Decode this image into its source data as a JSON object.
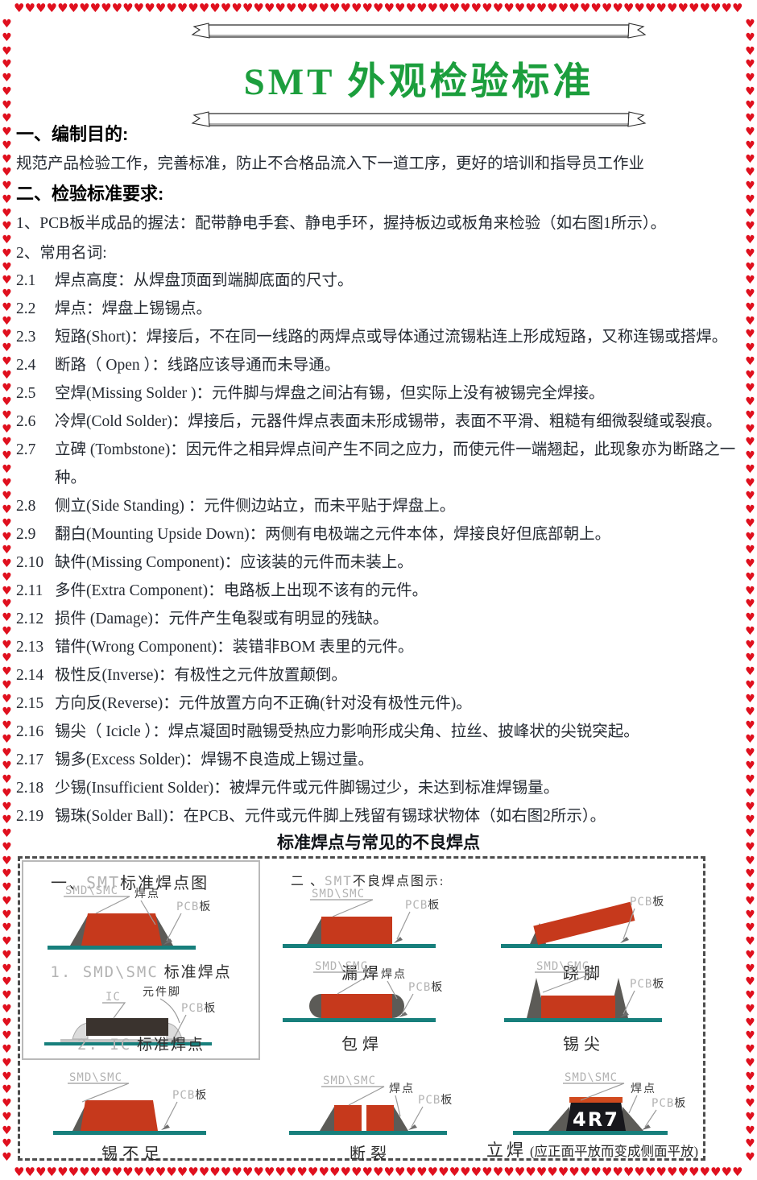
{
  "masthead": {
    "title": "SMT 外观检验标准"
  },
  "decor": {
    "heart_glyph": "♥",
    "heart_color": "#e0101e",
    "title_color": "#1c9e3d"
  },
  "intro": [
    {
      "kind": "heading",
      "text": "一、编制目的:"
    },
    {
      "kind": "body",
      "text": "规范产品检验工作，完善标准，防止不合格品流入下一道工序，更好的培训和指导员工作业"
    },
    {
      "kind": "heading",
      "text": "二、检验标准要求:"
    },
    {
      "kind": "body",
      "text": "1、PCB板半成品的握法：配带静电手套、静电手环，握持板边或板角来检验（如右图1所示）。"
    },
    {
      "kind": "body",
      "text": "2、常用名词:"
    }
  ],
  "terms": [
    {
      "num": "2.1",
      "text": "焊点高度：从焊盘顶面到端脚底面的尺寸。"
    },
    {
      "num": "2.2",
      "text": "焊点：焊盘上锡锡点。"
    },
    {
      "num": "2.3",
      "text": "短路(Short)：焊接后，不在同一线路的两焊点或导体通过流锡粘连上形成短路，又称连锡或搭焊。"
    },
    {
      "num": "2.4",
      "text": "断路（ Open ）：线路应该导通而未导通。"
    },
    {
      "num": "2.5",
      "text": "空焊(Missing Solder )：元件脚与焊盘之间沾有锡，但实际上没有被锡完全焊接。"
    },
    {
      "num": "2.6",
      "text": "冷焊(Cold Solder)：焊接后，元器件焊点表面未形成锡带，表面不平滑、粗糙有细微裂缝或裂痕。"
    },
    {
      "num": "2.7",
      "text": "立碑 (Tombstone)：因元件之相异焊点间产生不同之应力，而使元件一端翘起，此现象亦为断路之一种。"
    },
    {
      "num": "2.8",
      "text": "侧立(Side Standing) ：元件侧边站立，而未平贴于焊盘上。"
    },
    {
      "num": "2.9",
      "text": "翻白(Mounting Upside Down)：两侧有电极端之元件本体，焊接良好但底部朝上。"
    },
    {
      "num": "2.10",
      "text": "缺件(Missing Component)：应该装的元件而未装上。"
    },
    {
      "num": "2.11",
      "text": "多件(Extra Component)：电路板上出现不该有的元件。"
    },
    {
      "num": "2.12",
      "text": "损件 (Damage)：元件产生龟裂或有明显的残缺。"
    },
    {
      "num": "2.13",
      "text": "错件(Wrong Component)：装错非BOM 表里的元件。"
    },
    {
      "num": "2.14",
      "text": "极性反(Inverse)：有极性之元件放置颠倒。"
    },
    {
      "num": "2.15",
      "text": "方向反(Reverse)：元件放置方向不正确(针对没有极性元件)。"
    },
    {
      "num": "2.16",
      "text": "锡尖（ Icicle ）：焊点凝固时融锡受热应力影响形成尖角、拉丝、披峰状的尖锐突起。"
    },
    {
      "num": "2.17",
      "text": "锡多(Excess Solder)：焊锡不良造成上锡过量。"
    },
    {
      "num": "2.18",
      "text": "少锡(Insufficient Solder)：被焊元件或元件脚锡过少，未达到标准焊锡量。"
    },
    {
      "num": "2.19",
      "text": "锡珠(Solder Ball)：在PCB、元件或元件脚上残留有锡球状物体（如右图2所示）。"
    }
  ],
  "figure": {
    "title": "标准焊点与常见的不良焊点",
    "panel_heading": {
      "p1": "一、",
      "p2": "SMT",
      "p3": "标准焊点图"
    },
    "defect_heading": {
      "p1": "二 、",
      "p2": "SMT",
      "p3": "不良焊点图示:"
    },
    "captions": {
      "std_smd_gray": "1. SMD\\SMC",
      "std_smd_dark": "标准焊点",
      "std_ic_gray": "2. IC",
      "std_ic_dark": "标准焊点",
      "louhan": "漏焊",
      "qiaojiao": "跷脚",
      "baohan": "包焊",
      "xijian": "锡尖",
      "xibuzu": "锡不足",
      "duanlie": "断裂",
      "lihan": "立焊",
      "lihan_note": "(应正面平放而变成侧面平放)"
    },
    "labels": {
      "smd": "SMD\\SMC",
      "joint": "焊点",
      "pcb": "PCB",
      "board": "板",
      "ic": "IC",
      "lead": "元件脚",
      "part_text": "4R7"
    },
    "colors": {
      "component_red": "#c6391c",
      "fillet_gray": "#5c5b57",
      "pcb_teal": "#177f7c",
      "ic_body": "#3a332e",
      "lihan_body": "#17171c"
    }
  }
}
